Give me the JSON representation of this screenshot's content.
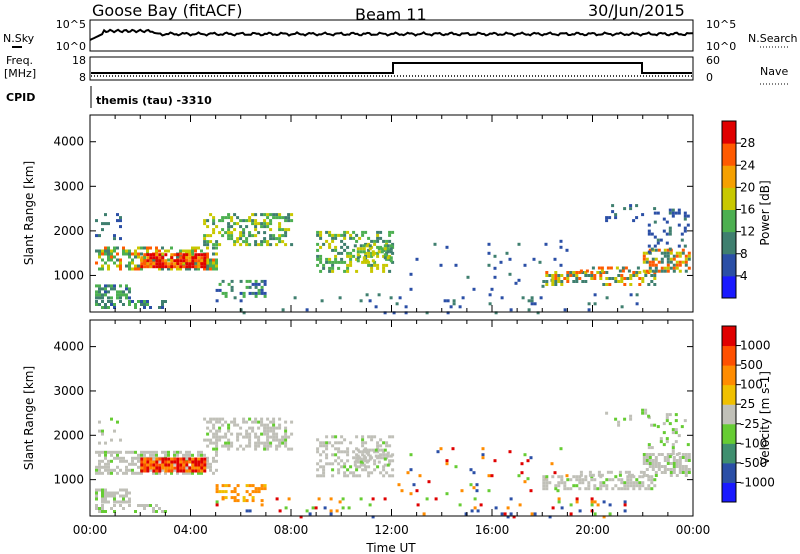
{
  "header": {
    "title": "Goose Bay (fitACF)",
    "beam": "Beam 11",
    "date": "30/Jun/2015"
  },
  "top_panels": {
    "nsky_label": "N.Sky",
    "nsky_ticks": [
      "10^5",
      "10^0"
    ],
    "nsearch_label": "N.Search",
    "nsearch_ticks": [
      "10^5",
      "10^0"
    ],
    "freq_label": "Freq.",
    "freq_unit": "[MHz]",
    "freq_ticks": [
      "18",
      "8"
    ],
    "nave_label": "Nave",
    "nave_ticks": [
      "60",
      "0"
    ],
    "cpid_label": "CPID",
    "cpid_text": "themis (tau) -3310"
  },
  "chart_data": [
    {
      "type": "heatmap",
      "name": "power",
      "ylabel": "Slant Range [km]",
      "ylim": [
        180,
        4600
      ],
      "yticks": [
        1000,
        2000,
        3000,
        4000
      ],
      "xlim": [
        0,
        24
      ],
      "colorbar": {
        "label": "Power [dB]",
        "ticks": [
          "4",
          "8",
          "12",
          "16",
          "20",
          "24",
          "28"
        ],
        "colors": [
          "#1a1aff",
          "#2b4fa6",
          "#3f7f6f",
          "#4caf50",
          "#c8c800",
          "#f5a000",
          "#ff5a00",
          "#e00000"
        ]
      }
    },
    {
      "type": "heatmap",
      "name": "velocity",
      "ylabel": "Slant Range [km]",
      "xlabel": "Time UT",
      "ylim": [
        180,
        4600
      ],
      "yticks": [
        1000,
        2000,
        3000,
        4000
      ],
      "xlim": [
        0,
        24
      ],
      "xticks": [
        "00:00",
        "04:00",
        "08:00",
        "12:00",
        "16:00",
        "20:00",
        "00:00"
      ],
      "colorbar": {
        "label": "Velocity [m s-1]",
        "ticks": [
          "1000",
          "500",
          "100",
          "25",
          "-25",
          "-100",
          "-500",
          "-1000"
        ],
        "colors": [
          "#1a1aff",
          "#2b4fa6",
          "#3f8f6f",
          "#66cc33",
          "#c0c0b8",
          "#f0c000",
          "#ff8c00",
          "#ff5000",
          "#e00000"
        ]
      }
    }
  ],
  "colors": {
    "gray": "#c0c0b8"
  }
}
